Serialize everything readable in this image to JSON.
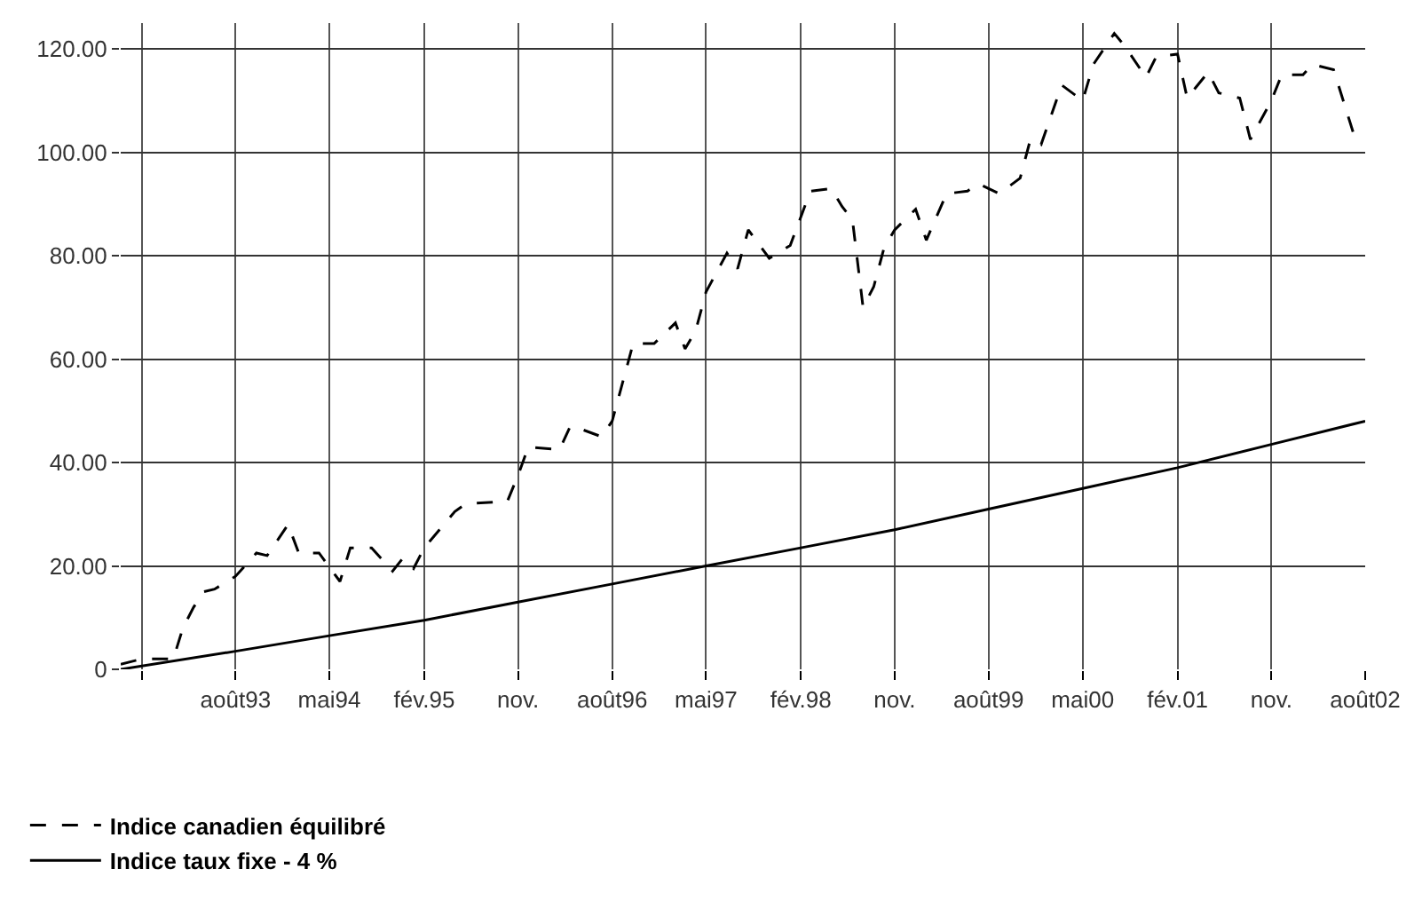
{
  "chart_data": {
    "type": "line",
    "series": [
      {
        "name": "Indice canadien équilibré",
        "color": "#000000",
        "line_style": "dashed",
        "x": [
          "1992-09",
          "1992-11",
          "1993-02",
          "1993-03",
          "1993-04",
          "1993-05",
          "1993-06",
          "1993-08",
          "1993-10",
          "1993-11",
          "1994-01",
          "1994-02",
          "1994-04",
          "1994-06",
          "1994-07",
          "1994-09",
          "1994-11",
          "1994-12",
          "1995-01",
          "1995-02",
          "1995-05",
          "1995-06",
          "1995-10",
          "1995-11",
          "1995-12",
          "1996-03",
          "1996-04",
          "1996-05",
          "1996-07",
          "1996-08",
          "1996-10",
          "1996-12",
          "1997-02",
          "1997-03",
          "1997-04",
          "1997-05",
          "1997-07",
          "1997-08",
          "1997-09",
          "1997-11",
          "1998-01",
          "1998-03",
          "1998-05",
          "1998-06",
          "1998-07",
          "1998-08",
          "1998-09",
          "1998-10",
          "1998-11",
          "1999-01",
          "1999-02",
          "1999-04",
          "1999-06",
          "1999-07",
          "1999-09",
          "1999-11",
          "1999-12",
          "2000-01",
          "2000-03",
          "2000-05",
          "2000-06",
          "2000-08",
          "2000-09",
          "2000-11",
          "2000-12",
          "2001-02",
          "2001-03",
          "2001-05",
          "2001-06",
          "2001-08",
          "2001-09",
          "2001-11",
          "2001-12",
          "2002-02",
          "2002-03",
          "2002-05",
          "2002-07"
        ],
        "values": [
          1,
          2,
          2,
          8,
          12,
          15,
          15.5,
          18,
          22.5,
          22,
          28,
          22.5,
          22.5,
          17,
          23.5,
          23.5,
          19,
          21.5,
          19.5,
          23.5,
          30.5,
          32,
          32.5,
          37.5,
          43,
          42.5,
          47,
          46.5,
          45,
          48,
          63,
          63,
          67,
          62,
          65.5,
          73,
          80.5,
          77.5,
          85,
          79.5,
          82,
          92.5,
          93,
          89.5,
          87,
          70,
          74,
          81.5,
          85,
          89,
          83,
          92,
          92.5,
          94,
          92,
          95,
          102.5,
          101.5,
          113,
          110,
          117,
          123,
          120.5,
          114.5,
          118.5,
          119,
          110.5,
          115.5,
          111.5,
          110.5,
          102.5,
          110,
          115,
          115,
          117,
          116,
          103
        ]
      },
      {
        "name": "Indice taux fixe - 4 %",
        "color": "#000000",
        "line_style": "solid",
        "x": [
          "1992-09",
          "1993-08",
          "1994-05",
          "1995-02",
          "1995-11",
          "1996-08",
          "1997-05",
          "1998-02",
          "1998-11",
          "1999-08",
          "2000-05",
          "2001-02",
          "2001-11",
          "2002-08"
        ],
        "values": [
          0,
          3.5,
          6.5,
          9.5,
          13,
          16.5,
          20,
          23.5,
          27,
          31,
          35,
          39,
          43.5,
          48
        ]
      }
    ],
    "xlim": [
      "1992-09",
      "2002-08"
    ],
    "xticks": [
      {
        "value": "1992-11",
        "label": null
      },
      {
        "value": "1993-08",
        "label": "août93"
      },
      {
        "value": "1994-05",
        "label": "mai94"
      },
      {
        "value": "1995-02",
        "label": "fév.95"
      },
      {
        "value": "1995-11",
        "label": "nov."
      },
      {
        "value": "1996-08",
        "label": "août96"
      },
      {
        "value": "1997-05",
        "label": "mai97"
      },
      {
        "value": "1998-02",
        "label": "fév.98"
      },
      {
        "value": "1998-11",
        "label": "nov."
      },
      {
        "value": "1999-08",
        "label": "août99"
      },
      {
        "value": "2000-05",
        "label": "mai00"
      },
      {
        "value": "2001-02",
        "label": "fév.01"
      },
      {
        "value": "2001-11",
        "label": "nov."
      },
      {
        "value": "2002-08",
        "label": "août02"
      }
    ],
    "ylim": [
      0,
      125
    ],
    "yticks": [
      0,
      {
        "value": 20,
        "label": "20.00"
      },
      {
        "value": 40,
        "label": "40.00"
      },
      {
        "value": 60,
        "label": "60.00"
      },
      {
        "value": 80,
        "label": "80.00"
      },
      {
        "value": 100,
        "label": "100.00"
      },
      {
        "value": 120,
        "label": "120.00"
      }
    ],
    "grid": true,
    "legend": "bottom left",
    "marker": "none"
  }
}
